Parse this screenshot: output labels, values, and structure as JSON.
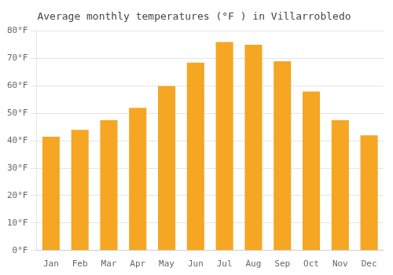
{
  "chart_data": {
    "type": "bar",
    "title": "Average monthly temperatures (°F ) in Villarrobledo",
    "categories": [
      "Jan",
      "Feb",
      "Mar",
      "Apr",
      "May",
      "Jun",
      "Jul",
      "Aug",
      "Sep",
      "Oct",
      "Nov",
      "Dec"
    ],
    "values": [
      41.5,
      44.0,
      47.5,
      52.0,
      60.0,
      68.5,
      76.0,
      75.0,
      69.0,
      58.0,
      47.5,
      42.0
    ],
    "color": "#F5A623",
    "ylim": [
      0,
      80
    ],
    "yticks": [
      {
        "value": 0,
        "label": "0°F"
      },
      {
        "value": 10,
        "label": "10°F"
      },
      {
        "value": 20,
        "label": "20°F"
      },
      {
        "value": 30,
        "label": "30°F"
      },
      {
        "value": 40,
        "label": "40°F"
      },
      {
        "value": 50,
        "label": "50°F"
      },
      {
        "value": 60,
        "label": "60°F"
      },
      {
        "value": 70,
        "label": "70°F"
      },
      {
        "value": 80,
        "label": "80°F"
      }
    ],
    "grid": true
  }
}
